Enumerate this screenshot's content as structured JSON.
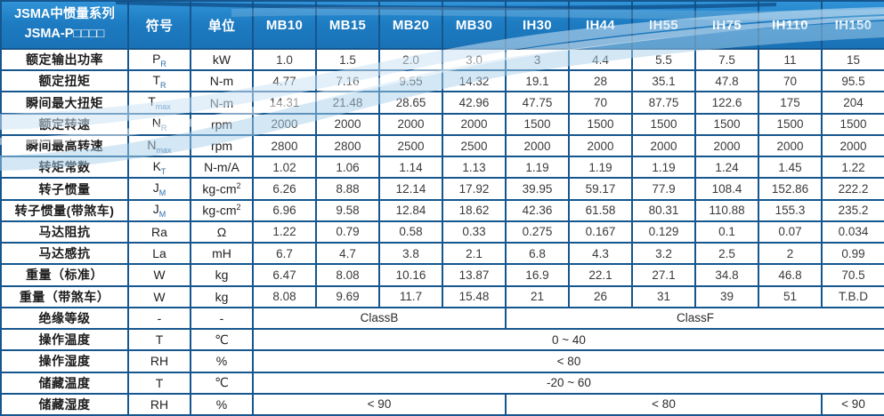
{
  "table": {
    "title_line1": "JSMA中惯量系列",
    "title_line2": "JSMA-P□□□□",
    "col_symbol": "符号",
    "col_unit": "单位",
    "models": [
      "MB10",
      "MB15",
      "MB20",
      "MB30",
      "IH30",
      "IH44",
      "IH55",
      "IH75",
      "IH110",
      "IH150"
    ],
    "rows": [
      {
        "label": "额定输出功率",
        "symbol": "P",
        "symbol_sub": "R",
        "unit": "kW",
        "values": [
          "1.0",
          "1.5",
          "2.0",
          "3.0",
          "3",
          "4.4",
          "5.5",
          "7.5",
          "11",
          "15"
        ]
      },
      {
        "label": "额定扭矩",
        "symbol": "T",
        "symbol_sub": "R",
        "unit": "N-m",
        "values": [
          "4.77",
          "7.16",
          "9.55",
          "14.32",
          "19.1",
          "28",
          "35.1",
          "47.8",
          "70",
          "95.5"
        ]
      },
      {
        "label": "瞬间最大扭矩",
        "symbol": "T",
        "symbol_sub": "max",
        "unit": "N-m",
        "values": [
          "14.31",
          "21.48",
          "28.65",
          "42.96",
          "47.75",
          "70",
          "87.75",
          "122.6",
          "175",
          "204"
        ]
      },
      {
        "label": "额定转速",
        "symbol": "N",
        "symbol_sub": "R",
        "unit": "rpm",
        "values": [
          "2000",
          "2000",
          "2000",
          "2000",
          "1500",
          "1500",
          "1500",
          "1500",
          "1500",
          "1500"
        ]
      },
      {
        "label": "瞬间最高转速",
        "symbol": "N",
        "symbol_sub": "max",
        "unit": "rpm",
        "values": [
          "2800",
          "2800",
          "2500",
          "2500",
          "2000",
          "2000",
          "2000",
          "2000",
          "2000",
          "2000"
        ]
      },
      {
        "label": "转矩常数",
        "symbol": "K",
        "symbol_sub": "T",
        "unit": "N-m/A",
        "values": [
          "1.02",
          "1.06",
          "1.14",
          "1.13",
          "1.19",
          "1.19",
          "1.19",
          "1.24",
          "1.45",
          "1.22"
        ]
      },
      {
        "label": "转子惯量",
        "symbol": "J",
        "symbol_sub": "M",
        "unit": "kg-cm",
        "unit_sup": "2",
        "values": [
          "6.26",
          "8.88",
          "12.14",
          "17.92",
          "39.95",
          "59.17",
          "77.9",
          "108.4",
          "152.86",
          "222.2"
        ]
      },
      {
        "label": "转子惯量(带煞车)",
        "symbol": "J",
        "symbol_sub": "M",
        "unit": "kg-cm",
        "unit_sup": "2",
        "values": [
          "6.96",
          "9.58",
          "12.84",
          "18.62",
          "42.36",
          "61.58",
          "80.31",
          "110.88",
          "155.3",
          "235.2"
        ]
      },
      {
        "label": "马达阻抗",
        "symbol": "Ra",
        "symbol_sub": "",
        "unit": "Ω",
        "values": [
          "1.22",
          "0.79",
          "0.58",
          "0.33",
          "0.275",
          "0.167",
          "0.129",
          "0.1",
          "0.07",
          "0.034"
        ]
      },
      {
        "label": "马达感抗",
        "symbol": "La",
        "symbol_sub": "",
        "unit": "mH",
        "values": [
          "6.7",
          "4.7",
          "3.8",
          "2.1",
          "6.8",
          "4.3",
          "3.2",
          "2.5",
          "2",
          "0.99"
        ]
      },
      {
        "label": "重量（标准）",
        "symbol": "W",
        "symbol_sub": "",
        "unit": "kg",
        "values": [
          "6.47",
          "8.08",
          "10.16",
          "13.87",
          "16.9",
          "22.1",
          "27.1",
          "34.8",
          "46.8",
          "70.5"
        ]
      },
      {
        "label": "重量（带煞车）",
        "symbol": "W",
        "symbol_sub": "",
        "unit": "kg",
        "values": [
          "8.08",
          "9.69",
          "11.7",
          "15.48",
          "21",
          "26",
          "31",
          "39",
          "51",
          "T.B.D"
        ]
      },
      {
        "label": "绝缘等级",
        "symbol": "-",
        "symbol_sub": "",
        "unit": "-",
        "spans": [
          {
            "text": "ClassB",
            "cols": 4
          },
          {
            "text": "ClassF",
            "cols": 6
          }
        ]
      },
      {
        "label": "操作温度",
        "symbol": "T",
        "symbol_sub": "",
        "unit": "℃",
        "spans": [
          {
            "text": "0 ~ 40",
            "cols": 10
          }
        ]
      },
      {
        "label": "操作湿度",
        "symbol": "RH",
        "symbol_sub": "",
        "unit": "%",
        "spans": [
          {
            "text": "< 80",
            "cols": 10
          }
        ]
      },
      {
        "label": "储藏温度",
        "symbol": "T",
        "symbol_sub": "",
        "unit": "℃",
        "spans": [
          {
            "text": "-20 ~ 60",
            "cols": 10
          }
        ]
      },
      {
        "label": "储藏湿度",
        "symbol": "RH",
        "symbol_sub": "",
        "unit": "%",
        "spans": [
          {
            "text": "< 90",
            "cols": 4
          },
          {
            "text": "< 80",
            "cols": 5
          },
          {
            "text": "< 90",
            "cols": 1
          }
        ]
      }
    ],
    "colors": {
      "header_blue": "#1e7cc2",
      "border_blue": "#15568e",
      "wave_light_blue": "#a8cfe9",
      "wave_pale_blue": "#cde4f4",
      "wave_dark_navy": "#0d4c86"
    }
  }
}
